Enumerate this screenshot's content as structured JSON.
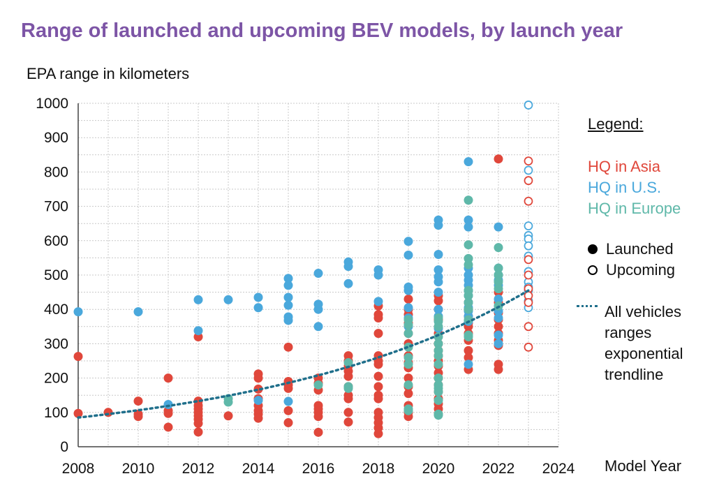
{
  "chart_data": {
    "type": "scatter",
    "title": "Range of launched and upcoming BEV models, by launch year",
    "ylabel": "EPA range in kilometers",
    "xlabel": "Model Year",
    "xlim": [
      2008,
      2024
    ],
    "ylim": [
      0,
      1000
    ],
    "x_ticks": [
      "2008",
      "2010",
      "2012",
      "2014",
      "2016",
      "2018",
      "2020",
      "2022",
      "2024"
    ],
    "y_ticks": [
      "0",
      "100",
      "200",
      "300",
      "400",
      "500",
      "600",
      "700",
      "800",
      "900",
      "1000"
    ],
    "grid": true,
    "legend": {
      "title": "Legend:",
      "position": "right",
      "asia": "HQ in Asia",
      "us": "HQ in U.S.",
      "europe": "HQ in Europe",
      "launched": "Launched",
      "upcoming": "Upcoming",
      "trendline": "All vehicles ranges exponential trendline"
    },
    "colors": {
      "asia": "#e0473b",
      "us": "#4aa8dc",
      "europe": "#5fb8a9",
      "trendline": "#1f6f8b",
      "title": "#7d55a6"
    },
    "trendline": {
      "type": "exponential",
      "x_start": 2008,
      "y_start": 85,
      "x_end": 2023,
      "y_end": 455
    },
    "series": [
      {
        "name": "HQ in Asia",
        "status": "Launched",
        "color_key": "asia",
        "points": [
          [
            2008,
            263
          ],
          [
            2008,
            97
          ],
          [
            2009,
            100
          ],
          [
            2010,
            133
          ],
          [
            2010,
            95
          ],
          [
            2010,
            88
          ],
          [
            2011,
            200
          ],
          [
            2011,
            105
          ],
          [
            2011,
            97
          ],
          [
            2011,
            57
          ],
          [
            2012,
            320
          ],
          [
            2012,
            133
          ],
          [
            2012,
            120
          ],
          [
            2012,
            110
          ],
          [
            2012,
            100
          ],
          [
            2012,
            90
          ],
          [
            2012,
            80
          ],
          [
            2012,
            68
          ],
          [
            2012,
            43
          ],
          [
            2013,
            90
          ],
          [
            2014,
            212
          ],
          [
            2014,
            200
          ],
          [
            2014,
            168
          ],
          [
            2014,
            140
          ],
          [
            2014,
            120
          ],
          [
            2014,
            105
          ],
          [
            2014,
            95
          ],
          [
            2014,
            83
          ],
          [
            2015,
            290
          ],
          [
            2015,
            190
          ],
          [
            2015,
            180
          ],
          [
            2015,
            170
          ],
          [
            2015,
            105
          ],
          [
            2015,
            70
          ],
          [
            2016,
            200
          ],
          [
            2016,
            185
          ],
          [
            2016,
            165
          ],
          [
            2016,
            120
          ],
          [
            2016,
            110
          ],
          [
            2016,
            100
          ],
          [
            2016,
            88
          ],
          [
            2016,
            42
          ],
          [
            2017,
            265
          ],
          [
            2017,
            250
          ],
          [
            2017,
            235
          ],
          [
            2017,
            220
          ],
          [
            2017,
            205
          ],
          [
            2017,
            175
          ],
          [
            2017,
            150
          ],
          [
            2017,
            140
          ],
          [
            2017,
            100
          ],
          [
            2017,
            72
          ],
          [
            2018,
            410
          ],
          [
            2018,
            385
          ],
          [
            2018,
            375
          ],
          [
            2018,
            330
          ],
          [
            2018,
            265
          ],
          [
            2018,
            250
          ],
          [
            2018,
            240
          ],
          [
            2018,
            205
          ],
          [
            2018,
            175
          ],
          [
            2018,
            150
          ],
          [
            2018,
            140
          ],
          [
            2018,
            100
          ],
          [
            2018,
            85
          ],
          [
            2018,
            70
          ],
          [
            2018,
            55
          ],
          [
            2018,
            38
          ],
          [
            2019,
            430
          ],
          [
            2019,
            400
          ],
          [
            2019,
            385
          ],
          [
            2019,
            360
          ],
          [
            2019,
            330
          ],
          [
            2019,
            300
          ],
          [
            2019,
            265
          ],
          [
            2019,
            245
          ],
          [
            2019,
            230
          ],
          [
            2019,
            200
          ],
          [
            2019,
            175
          ],
          [
            2019,
            155
          ],
          [
            2019,
            120
          ],
          [
            2019,
            100
          ],
          [
            2019,
            88
          ],
          [
            2020,
            440
          ],
          [
            2020,
            425
          ],
          [
            2020,
            400
          ],
          [
            2020,
            370
          ],
          [
            2020,
            345
          ],
          [
            2020,
            330
          ],
          [
            2020,
            300
          ],
          [
            2020,
            280
          ],
          [
            2020,
            265
          ],
          [
            2020,
            250
          ],
          [
            2020,
            235
          ],
          [
            2020,
            215
          ],
          [
            2020,
            200
          ],
          [
            2020,
            180
          ],
          [
            2020,
            160
          ],
          [
            2020,
            140
          ],
          [
            2020,
            125
          ],
          [
            2020,
            110
          ],
          [
            2020,
            95
          ],
          [
            2021,
            420
          ],
          [
            2021,
            400
          ],
          [
            2021,
            380
          ],
          [
            2021,
            360
          ],
          [
            2021,
            350
          ],
          [
            2021,
            330
          ],
          [
            2021,
            310
          ],
          [
            2021,
            280
          ],
          [
            2021,
            260
          ],
          [
            2021,
            225
          ],
          [
            2022,
            838
          ],
          [
            2022,
            450
          ],
          [
            2022,
            420
          ],
          [
            2022,
            390
          ],
          [
            2022,
            370
          ],
          [
            2022,
            350
          ],
          [
            2022,
            330
          ],
          [
            2022,
            310
          ],
          [
            2022,
            295
          ],
          [
            2022,
            240
          ],
          [
            2022,
            225
          ]
        ]
      },
      {
        "name": "HQ in U.S.",
        "status": "Launched",
        "color_key": "us",
        "points": [
          [
            2008,
            393
          ],
          [
            2010,
            393
          ],
          [
            2011,
            123
          ],
          [
            2012,
            428
          ],
          [
            2012,
            338
          ],
          [
            2013,
            428
          ],
          [
            2014,
            435
          ],
          [
            2014,
            405
          ],
          [
            2014,
            135
          ],
          [
            2015,
            490
          ],
          [
            2015,
            470
          ],
          [
            2015,
            435
          ],
          [
            2015,
            412
          ],
          [
            2015,
            378
          ],
          [
            2015,
            368
          ],
          [
            2015,
            132
          ],
          [
            2016,
            505
          ],
          [
            2016,
            415
          ],
          [
            2016,
            400
          ],
          [
            2016,
            350
          ],
          [
            2017,
            538
          ],
          [
            2017,
            525
          ],
          [
            2017,
            475
          ],
          [
            2018,
            515
          ],
          [
            2018,
            500
          ],
          [
            2018,
            423
          ],
          [
            2019,
            598
          ],
          [
            2019,
            558
          ],
          [
            2019,
            465
          ],
          [
            2019,
            455
          ],
          [
            2019,
            405
          ],
          [
            2019,
            375
          ],
          [
            2019,
            350
          ],
          [
            2020,
            660
          ],
          [
            2020,
            645
          ],
          [
            2020,
            560
          ],
          [
            2020,
            515
          ],
          [
            2020,
            495
          ],
          [
            2020,
            480
          ],
          [
            2020,
            450
          ],
          [
            2020,
            400
          ],
          [
            2020,
            380
          ],
          [
            2020,
            345
          ],
          [
            2021,
            830
          ],
          [
            2021,
            660
          ],
          [
            2021,
            640
          ],
          [
            2021,
            520
          ],
          [
            2021,
            500
          ],
          [
            2021,
            485
          ],
          [
            2021,
            470
          ],
          [
            2021,
            455
          ],
          [
            2021,
            440
          ],
          [
            2021,
            420
          ],
          [
            2021,
            405
          ],
          [
            2021,
            395
          ],
          [
            2021,
            380
          ],
          [
            2021,
            365
          ],
          [
            2021,
            240
          ],
          [
            2022,
            640
          ],
          [
            2022,
            520
          ],
          [
            2022,
            500
          ],
          [
            2022,
            485
          ],
          [
            2022,
            470
          ],
          [
            2022,
            430
          ],
          [
            2022,
            410
          ],
          [
            2022,
            395
          ],
          [
            2022,
            375
          ],
          [
            2022,
            325
          ],
          [
            2022,
            300
          ]
        ]
      },
      {
        "name": "HQ in Europe",
        "status": "Launched",
        "color_key": "europe",
        "points": [
          [
            2013,
            140
          ],
          [
            2013,
            130
          ],
          [
            2016,
            180
          ],
          [
            2017,
            245
          ],
          [
            2017,
            175
          ],
          [
            2017,
            170
          ],
          [
            2019,
            370
          ],
          [
            2019,
            355
          ],
          [
            2019,
            330
          ],
          [
            2019,
            290
          ],
          [
            2019,
            260
          ],
          [
            2019,
            240
          ],
          [
            2019,
            180
          ],
          [
            2019,
            110
          ],
          [
            2019,
            105
          ],
          [
            2020,
            375
          ],
          [
            2020,
            365
          ],
          [
            2020,
            350
          ],
          [
            2020,
            320
          ],
          [
            2020,
            300
          ],
          [
            2020,
            280
          ],
          [
            2020,
            265
          ],
          [
            2020,
            240
          ],
          [
            2020,
            200
          ],
          [
            2020,
            180
          ],
          [
            2020,
            170
          ],
          [
            2020,
            160
          ],
          [
            2020,
            135
          ],
          [
            2020,
            95
          ],
          [
            2020,
            92
          ],
          [
            2021,
            718
          ],
          [
            2021,
            588
          ],
          [
            2021,
            548
          ],
          [
            2021,
            530
          ],
          [
            2021,
            455
          ],
          [
            2021,
            440
          ],
          [
            2021,
            420
          ],
          [
            2021,
            400
          ],
          [
            2021,
            370
          ],
          [
            2021,
            325
          ],
          [
            2021,
            320
          ],
          [
            2022,
            580
          ],
          [
            2022,
            520
          ],
          [
            2022,
            500
          ],
          [
            2022,
            480
          ],
          [
            2022,
            460
          ],
          [
            2022,
            410
          ]
        ]
      },
      {
        "name": "HQ in U.S.",
        "status": "Upcoming",
        "color_key": "us",
        "points": [
          [
            2023,
            995
          ],
          [
            2023,
            805
          ],
          [
            2023,
            643
          ],
          [
            2023,
            615
          ],
          [
            2023,
            605
          ],
          [
            2023,
            585
          ],
          [
            2023,
            555
          ],
          [
            2023,
            510
          ],
          [
            2023,
            480
          ],
          [
            2023,
            465
          ],
          [
            2023,
            455
          ],
          [
            2023,
            425
          ],
          [
            2023,
            405
          ]
        ]
      },
      {
        "name": "HQ in Asia",
        "status": "Upcoming",
        "color_key": "asia",
        "points": [
          [
            2023,
            832
          ],
          [
            2023,
            775
          ],
          [
            2023,
            715
          ],
          [
            2023,
            545
          ],
          [
            2023,
            500
          ],
          [
            2023,
            460
          ],
          [
            2023,
            440
          ],
          [
            2023,
            420
          ],
          [
            2023,
            350
          ],
          [
            2023,
            290
          ]
        ]
      }
    ]
  }
}
